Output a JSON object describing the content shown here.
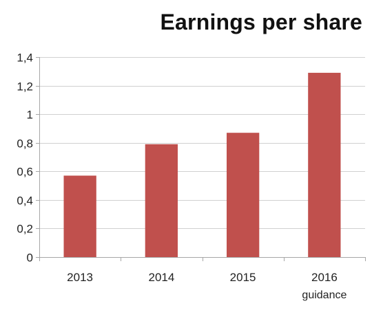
{
  "chart_data": {
    "type": "bar",
    "title": "Earnings per share",
    "xlabel": "",
    "ylabel": "",
    "categories": [
      {
        "label": "2013",
        "sublabel": ""
      },
      {
        "label": "2014",
        "sublabel": ""
      },
      {
        "label": "2015",
        "sublabel": ""
      },
      {
        "label": "2016",
        "sublabel": "guidance"
      }
    ],
    "values": [
      0.57,
      0.79,
      0.87,
      1.29
    ],
    "ylim": [
      0,
      1.4
    ],
    "yticks": [
      {
        "value": 0,
        "label": "0"
      },
      {
        "value": 0.2,
        "label": "0,2"
      },
      {
        "value": 0.4,
        "label": "0,4"
      },
      {
        "value": 0.6,
        "label": "0,6"
      },
      {
        "value": 0.8,
        "label": "0,8"
      },
      {
        "value": 1.0,
        "label": "1"
      },
      {
        "value": 1.2,
        "label": "1,2"
      },
      {
        "value": 1.4,
        "label": "1,4"
      }
    ],
    "grid": true,
    "legend": "none",
    "bar_color": "#c0504d",
    "grid_color": "#d0d0d0",
    "axis_color": "#a6a6a6"
  }
}
